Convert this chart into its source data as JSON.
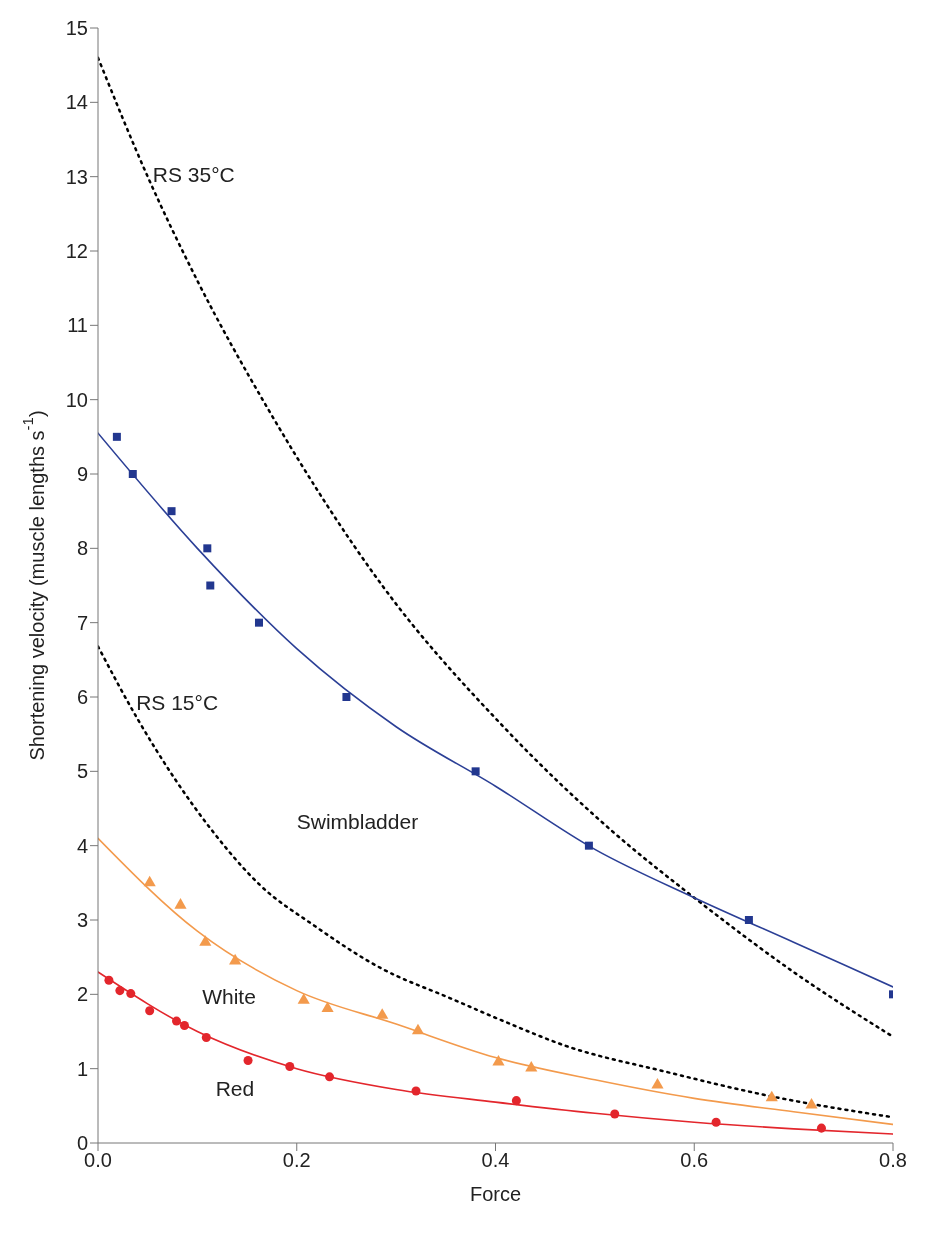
{
  "chart_data": {
    "type": "scatter",
    "xlabel": "Force",
    "ylabel": "Shortening  velocity (muscle lengths s$^{-1}$)",
    "xlim": [
      0,
      0.8
    ],
    "ylim": [
      0,
      15
    ],
    "xticks": [
      {
        "value": 0,
        "label": "0.0"
      },
      {
        "value": 0.2,
        "label": "0.2"
      },
      {
        "value": 0.4,
        "label": "0.4"
      },
      {
        "value": 0.6,
        "label": "0.6"
      },
      {
        "value": 0.8,
        "label": "0.8"
      }
    ],
    "yticks": [
      0,
      1,
      2,
      3,
      4,
      5,
      6,
      7,
      8,
      9,
      10,
      11,
      12,
      13,
      14,
      15
    ],
    "grid": false,
    "series": [
      {
        "type": "line",
        "color": "#000000",
        "line_style": "dotted",
        "marker": "none",
        "x": [
          0,
          0.05,
          0.1,
          0.17,
          0.286,
          0.408,
          0.517,
          0.6,
          0.7,
          0.8
        ],
        "values": [
          14.6,
          13,
          11.6,
          9.9,
          7.5,
          5.6,
          4.2,
          3.3,
          2.3,
          1.43
        ]
      },
      {
        "type": "line",
        "color": "#000000",
        "line_style": "dotted",
        "marker": "none",
        "x": [
          0,
          0.04,
          0.115,
          0.163,
          0.217,
          0.285,
          0.354,
          0.408,
          0.47,
          0.571,
          0.673,
          0.798
        ],
        "values": [
          6.68,
          5.7,
          4.2,
          3.47,
          2.93,
          2.35,
          1.95,
          1.64,
          1.31,
          0.96,
          0.64,
          0.35
        ]
      },
      {
        "type": "line",
        "color": "#2b3f96",
        "line_style": "solid",
        "marker": "none",
        "x": [
          0,
          0.1,
          0.2,
          0.3,
          0.4,
          0.5,
          0.6,
          0.7,
          0.8
        ],
        "values": [
          9.55,
          8.0,
          6.65,
          5.6,
          4.8,
          3.95,
          3.3,
          2.7,
          2.1
        ]
      },
      {
        "type": "line",
        "color": "#f39a4c",
        "line_style": "solid",
        "marker": "none",
        "x": [
          0,
          0.1,
          0.2,
          0.3,
          0.4,
          0.5,
          0.6,
          0.7,
          0.8
        ],
        "values": [
          4.1,
          2.85,
          2.05,
          1.6,
          1.15,
          0.85,
          0.6,
          0.42,
          0.25
        ]
      },
      {
        "type": "line",
        "color": "#e3262c",
        "line_style": "solid",
        "marker": "none",
        "x": [
          0,
          0.1,
          0.2,
          0.3,
          0.4,
          0.5,
          0.6,
          0.7,
          0.8
        ],
        "values": [
          2.3,
          1.5,
          1.0,
          0.72,
          0.55,
          0.4,
          0.28,
          0.19,
          0.12
        ]
      },
      {
        "color": "#22378f",
        "marker": "square",
        "x": [
          0.019,
          0.035,
          0.074,
          0.11,
          0.113,
          0.162,
          0.25,
          0.38,
          0.494,
          0.655,
          0.8
        ],
        "values": [
          9.5,
          9.0,
          8.5,
          8.0,
          7.5,
          7.0,
          6.0,
          5.0,
          4.0,
          3.0,
          2.0
        ]
      },
      {
        "color": "#f39a4c",
        "marker": "triangle",
        "x": [
          0.052,
          0.083,
          0.108,
          0.138,
          0.207,
          0.231,
          0.286,
          0.322,
          0.403,
          0.436,
          0.563,
          0.678,
          0.718
        ],
        "values": [
          3.5,
          3.2,
          2.7,
          2.45,
          1.92,
          1.81,
          1.72,
          1.51,
          1.09,
          1.01,
          0.78,
          0.61,
          0.51
        ]
      },
      {
        "color": "#e3262c",
        "marker": "circle",
        "x": [
          0.011,
          0.022,
          0.033,
          0.052,
          0.079,
          0.087,
          0.109,
          0.151,
          0.193,
          0.233,
          0.32,
          0.421,
          0.52,
          0.622,
          0.728
        ],
        "values": [
          2.19,
          2.05,
          2.01,
          1.78,
          1.64,
          1.58,
          1.42,
          1.11,
          1.03,
          0.89,
          0.7,
          0.57,
          0.39,
          0.28,
          0.2
        ]
      }
    ],
    "annotations": [
      "RS 35°C",
      "RS 15°C",
      "Swimbladder",
      "White",
      "Red"
    ]
  }
}
